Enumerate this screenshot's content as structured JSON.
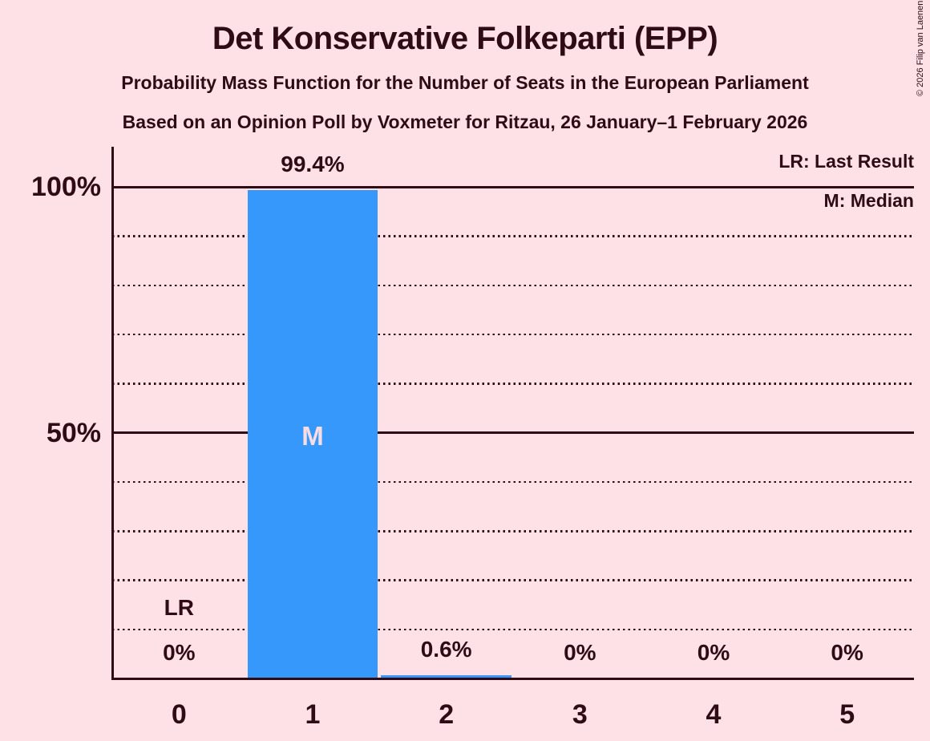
{
  "title": "Det Konservative Folkeparti (EPP)",
  "subtitles": [
    "Probability Mass Function for the Number of Seats in the European Parliament",
    "Based on an Opinion Poll by Voxmeter for Ritzau, 26 January–1 February 2026"
  ],
  "copyright": "© 2026 Filip van Laenen",
  "legend": {
    "last_result": "LR: Last Result",
    "median": "M: Median"
  },
  "colors": {
    "background": "#fde1e6",
    "text": "#2f0c15",
    "bar": "#3598fa",
    "bar_marker_text": "#f8dce3"
  },
  "chart_data": {
    "type": "bar",
    "title": "Det Konservative Folkeparti (EPP)",
    "categories": [
      "0",
      "1",
      "2",
      "3",
      "4",
      "5"
    ],
    "values": [
      0,
      99.4,
      0.6,
      0,
      0,
      0
    ],
    "value_labels": [
      "0%",
      "99.4%",
      "0.6%",
      "0%",
      "0%",
      "0%"
    ],
    "yticks": [
      {
        "value": 100,
        "label": "100%"
      },
      {
        "value": 50,
        "label": "50%"
      }
    ],
    "ylim": [
      0,
      100
    ],
    "gridlines": {
      "solid": [
        50,
        100
      ],
      "dotted": [
        10,
        20,
        30,
        40,
        60,
        70,
        80,
        90
      ]
    },
    "grid": "horizontal, dotted minor every 10%, solid at 50% and 100%",
    "legend_position": "top-right",
    "annotations": {
      "last_result_category": "0",
      "last_result_marker": "LR",
      "median_category": "1",
      "median_marker": "M"
    }
  }
}
